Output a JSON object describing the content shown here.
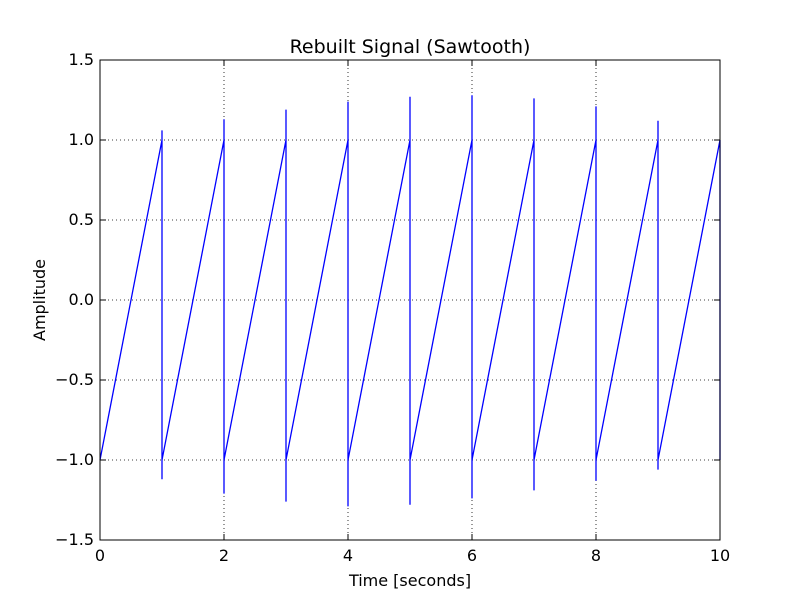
{
  "chart_data": {
    "type": "line",
    "title": "Rebuilt Signal (Sawtooth)",
    "xlabel": "Time [seconds]",
    "ylabel": "Amplitude",
    "xlim": [
      0,
      10
    ],
    "ylim": [
      -1.5,
      1.5
    ],
    "x_ticks": [
      0,
      2,
      4,
      6,
      8,
      10
    ],
    "y_ticks": [
      1.5,
      1.0,
      0.5,
      0.0,
      -0.5,
      -1.0,
      -1.5
    ],
    "x_tick_labels": [
      "0",
      "2",
      "4",
      "6",
      "8",
      "10"
    ],
    "y_tick_labels": [
      "1.5",
      "1.0",
      "0.5",
      "0.0",
      "−0.5",
      "−1.0",
      "−1.5"
    ],
    "grid": true,
    "series_color": "#0000ff",
    "series": [
      {
        "x": [
          0,
          1,
          1,
          1,
          1,
          2,
          2,
          2,
          2,
          3,
          3,
          3,
          3,
          4,
          4,
          4,
          4,
          5,
          5,
          5,
          5,
          6,
          6,
          6,
          6,
          7,
          7,
          7,
          7,
          8,
          8,
          8,
          8,
          9,
          9,
          9,
          9,
          10,
          10
        ],
        "y": [
          -1.0,
          1.0,
          1.06,
          -1.12,
          -1.0,
          1.0,
          1.13,
          -1.21,
          -1.0,
          1.0,
          1.19,
          -1.26,
          -1.0,
          1.0,
          1.24,
          -1.29,
          -1.0,
          1.0,
          1.27,
          -1.28,
          -1.0,
          1.0,
          1.28,
          -1.24,
          -1.0,
          1.0,
          1.26,
          -1.19,
          -1.0,
          1.0,
          1.21,
          -1.13,
          -1.0,
          1.0,
          1.12,
          -1.06,
          -1.0,
          1.0,
          -1.0
        ]
      }
    ]
  }
}
